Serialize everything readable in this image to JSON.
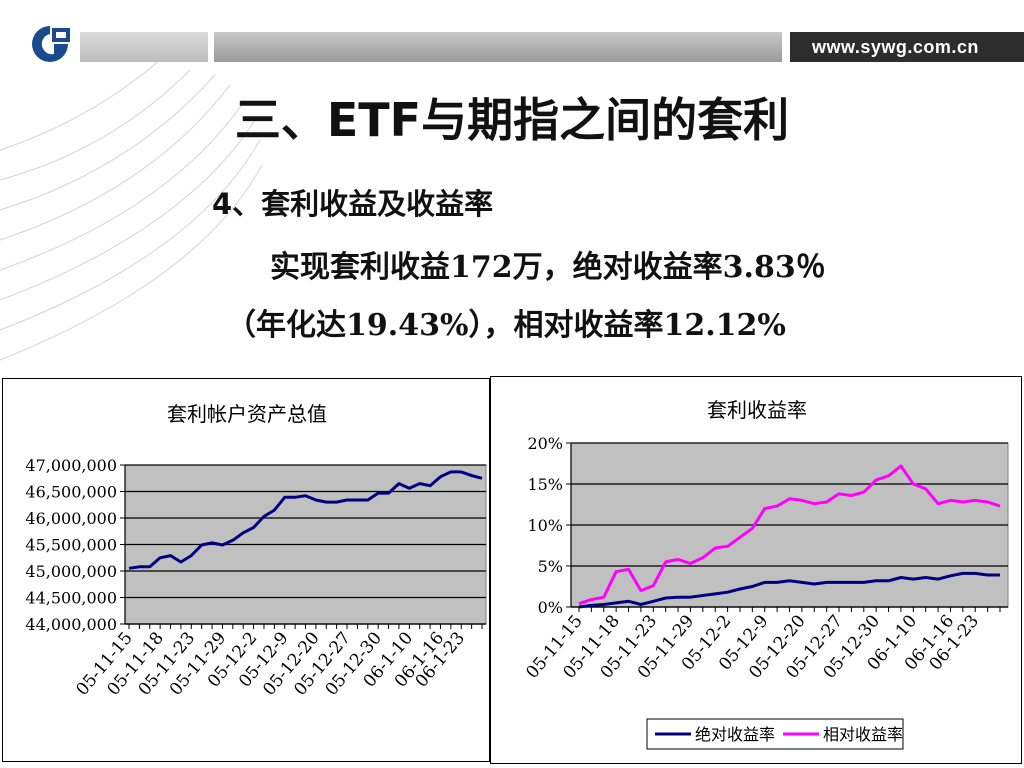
{
  "header": {
    "url": "www.sywg.com.cn",
    "colors": {
      "dark_bar": "#2d2d2d",
      "logo_blue": "#1a4b8c"
    }
  },
  "slide": {
    "title": "三、ETF与期指之间的套利",
    "subtitle": "4、套利收益及收益率",
    "body_line1": "实现套利收益172万，绝对收益率3.83％",
    "body_line2": "（年化达19.43%），相对收益率12.12%"
  },
  "chart_data": [
    {
      "type": "line",
      "title": "套利帐户资产总值",
      "xlabel": "",
      "ylabel": "",
      "ylim": [
        44000000,
        47000000
      ],
      "y_ticks": [
        "47,000,000",
        "46,500,000",
        "46,000,000",
        "45,500,000",
        "45,000,000",
        "44,500,000",
        "44,000,000"
      ],
      "x_tick_labels": [
        "05-11-15",
        "05-11-18",
        "05-11-23",
        "05-11-29",
        "05-12-2",
        "05-12-9",
        "05-12-20",
        "05-12-27",
        "05-12-30",
        "06-1-10",
        "06-1-16",
        "06-1-23"
      ],
      "grid": true,
      "plot_bg": "#c0c0c0",
      "series": [
        {
          "color": "#000080",
          "values": [
            45050000,
            45080000,
            45080000,
            45250000,
            45290000,
            45170000,
            45290000,
            45490000,
            45530000,
            45490000,
            45580000,
            45720000,
            45820000,
            46030000,
            46150000,
            46390000,
            46390000,
            46420000,
            46340000,
            46300000,
            46300000,
            46340000,
            46340000,
            46340000,
            46470000,
            46470000,
            46650000,
            46560000,
            46650000,
            46610000,
            46780000,
            46870000,
            46870000,
            46800000,
            46750000
          ]
        }
      ]
    },
    {
      "type": "line",
      "title": "套利收益率",
      "xlabel": "",
      "ylabel": "",
      "ylim": [
        0,
        20
      ],
      "y_ticks": [
        "20%",
        "15%",
        "10%",
        "5%",
        "0%"
      ],
      "x_tick_labels": [
        "05-11-15",
        "05-11-18",
        "05-11-23",
        "05-11-29",
        "05-12-2",
        "05-12-9",
        "05-12-20",
        "05-12-27",
        "05-12-30",
        "06-1-10",
        "06-1-16",
        "06-1-23"
      ],
      "grid": true,
      "plot_bg": "#c0c0c0",
      "legend_position": "bottom",
      "series": [
        {
          "name": "绝对收益率",
          "color": "#000080",
          "values": [
            0,
            0.2,
            0.3,
            0.5,
            0.7,
            0.3,
            0.7,
            1.1,
            1.2,
            1.2,
            1.4,
            1.6,
            1.8,
            2.2,
            2.5,
            3.0,
            3.0,
            3.2,
            3.0,
            2.8,
            3.0,
            3.0,
            3.0,
            3.0,
            3.2,
            3.2,
            3.6,
            3.4,
            3.6,
            3.4,
            3.8,
            4.1,
            4.1,
            3.9,
            3.9
          ]
        },
        {
          "name": "相对收益率",
          "color": "#ff00ff",
          "values": [
            0.4,
            0.9,
            1.2,
            4.3,
            4.6,
            2.0,
            2.6,
            5.5,
            5.8,
            5.3,
            6.0,
            7.2,
            7.4,
            8.5,
            9.6,
            12.0,
            12.3,
            13.2,
            13.0,
            12.6,
            12.8,
            13.8,
            13.6,
            14.0,
            15.5,
            16.0,
            17.2,
            15.0,
            14.4,
            12.6,
            13.0,
            12.8,
            13.0,
            12.8,
            12.3
          ]
        }
      ]
    }
  ]
}
